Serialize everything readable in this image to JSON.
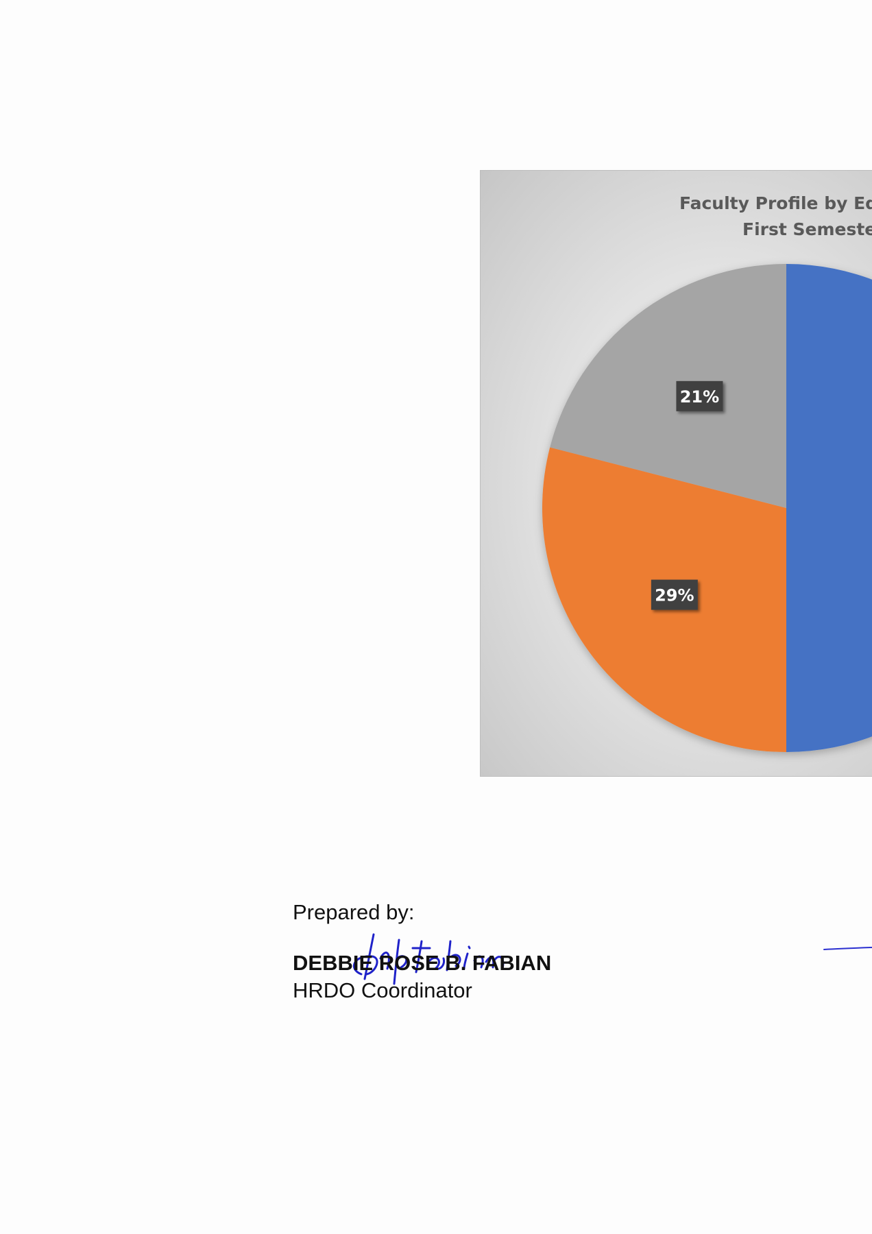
{
  "chart": {
    "title_line1": "Faculty Profile by Edu",
    "title_line2": "First Semester"
  },
  "chart_data": {
    "type": "pie",
    "title": "Faculty Profile by Edu… First Semester…",
    "slices": [
      {
        "value": 50,
        "color": "#4472c4",
        "label": ""
      },
      {
        "value": 29,
        "color": "#ed7d31",
        "label": "29%"
      },
      {
        "value": 21,
        "color": "#a5a5a5",
        "label": "21%"
      }
    ],
    "start_angle_deg": 0,
    "direction": "clockwise"
  },
  "signature": {
    "prepared_label": "Prepared by:",
    "name": "DEBBIE ROSE B. FABIAN",
    "title": "HRDO Coordinator",
    "handwritten": "drbfabian",
    "ink_color": "#1f22c9"
  }
}
